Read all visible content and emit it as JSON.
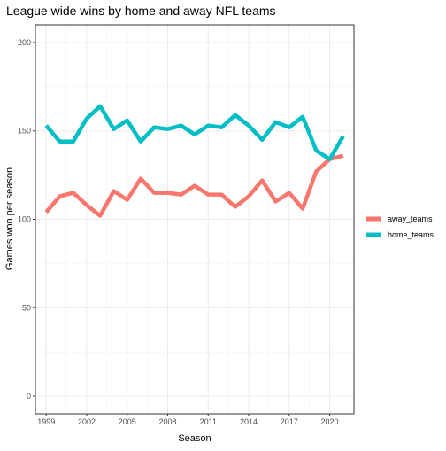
{
  "chart_data": {
    "type": "line",
    "title": "League wide wins by home and away NFL teams",
    "xlabel": "Season",
    "ylabel": "Games won per season",
    "x": [
      1999,
      2000,
      2001,
      2002,
      2003,
      2004,
      2005,
      2006,
      2007,
      2008,
      2009,
      2010,
      2011,
      2012,
      2013,
      2014,
      2015,
      2016,
      2017,
      2018,
      2019,
      2020,
      2021
    ],
    "x_ticks": [
      1999,
      2002,
      2005,
      2008,
      2011,
      2014,
      2017,
      2020
    ],
    "y_ticks": [
      0,
      50,
      100,
      150,
      200
    ],
    "xlim": [
      1998.2,
      2021.8
    ],
    "ylim": [
      -10,
      210
    ],
    "grid": true,
    "legend_position": "right",
    "series": [
      {
        "name": "away_teams",
        "color": "#F8766D",
        "values": [
          104,
          113,
          115,
          108,
          102,
          116,
          111,
          123,
          115,
          115,
          114,
          119,
          114,
          114,
          107,
          113,
          122,
          110,
          115,
          106,
          127,
          134,
          136
        ]
      },
      {
        "name": "home_teams",
        "color": "#00BFC4",
        "values": [
          153,
          144,
          144,
          157,
          164,
          151,
          156,
          144,
          152,
          151,
          153,
          148,
          153,
          152,
          159,
          153,
          145,
          155,
          152,
          158,
          139,
          134,
          147
        ]
      }
    ]
  }
}
